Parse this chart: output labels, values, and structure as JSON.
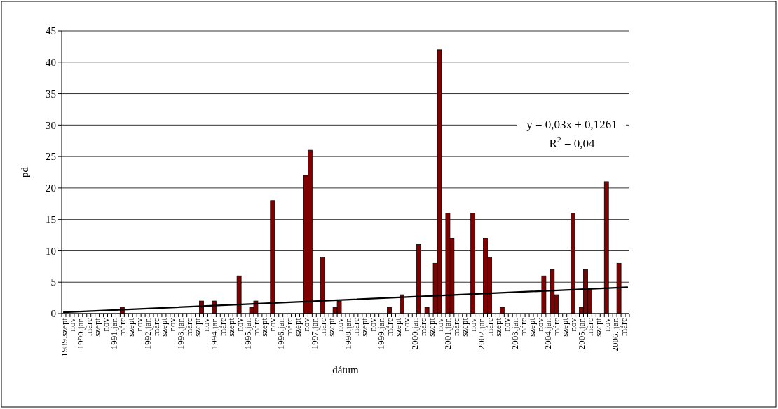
{
  "chart_data": {
    "type": "bar",
    "xlabel": "dátum",
    "ylabel": "pd",
    "categories": [
      "1989.szept",
      null,
      "nov",
      null,
      "1990.jan",
      null,
      "márc",
      null,
      "szept",
      null,
      "nov",
      null,
      "1991.jan",
      null,
      "márc",
      null,
      "szept",
      null,
      "nov",
      null,
      "1992.jan",
      null,
      "márc",
      null,
      "szept",
      null,
      "nov",
      null,
      "1993.jan",
      null,
      "márc",
      null,
      "szept",
      null,
      "nov",
      null,
      "1994.jan",
      null,
      "márc",
      null,
      "szept",
      null,
      "nov",
      null,
      "1995.jan",
      null,
      "márc",
      null,
      "szept",
      null,
      "nov",
      null,
      "1996.jan",
      null,
      "márc",
      null,
      "szept",
      null,
      "nov",
      null,
      "1997.jan",
      null,
      "márc",
      null,
      "szept",
      null,
      "nov",
      null,
      "1998.jan",
      null,
      "márc",
      null,
      "szept",
      null,
      "nov",
      null,
      "1999.jan",
      null,
      "márc",
      null,
      "szept",
      null,
      "nov",
      null,
      "2000.jan",
      null,
      "márc",
      null,
      "szept",
      null,
      "nov",
      null,
      "2001.jan",
      null,
      "márc",
      null,
      "szept",
      null,
      "nov",
      null,
      "2002.jan",
      null,
      "márc",
      null,
      "szept",
      null,
      "nov",
      null,
      "2003.jan",
      null,
      "márc",
      null,
      "szept",
      null,
      "nov",
      null,
      "2004.jan",
      null,
      "márc",
      null,
      "szept",
      null,
      "nov",
      null,
      "2005.jan",
      null,
      "márc",
      null,
      "szept",
      null,
      "nov",
      null,
      "2006. jan",
      null,
      "márc",
      null
    ],
    "series": [
      {
        "color": "#800000",
        "values": [
          0,
          0,
          0,
          0,
          0,
          0,
          0,
          0,
          0,
          0,
          0,
          0,
          0,
          0,
          1,
          0,
          0,
          0,
          0,
          0,
          0,
          0,
          0,
          0,
          0,
          0,
          0,
          0,
          0,
          0,
          0,
          0,
          0,
          2,
          0,
          0,
          2,
          0,
          0,
          0,
          0,
          0,
          6,
          0,
          0,
          1,
          2,
          0,
          0,
          0,
          18,
          0,
          0,
          0,
          0,
          0,
          0,
          0,
          22,
          26,
          0,
          0,
          9,
          0,
          0,
          1,
          2,
          0,
          0,
          0,
          0,
          0,
          0,
          0,
          0,
          0,
          0,
          0,
          1,
          0,
          0,
          3,
          0,
          0,
          0,
          11,
          0,
          1,
          0,
          8,
          42,
          0,
          16,
          12,
          0,
          0,
          0,
          0,
          16,
          0,
          0,
          12,
          9,
          0,
          0,
          1,
          0,
          0,
          0,
          0,
          0,
          0,
          0,
          0,
          0,
          6,
          0,
          7,
          3,
          0,
          0,
          0,
          16,
          0,
          1,
          7,
          4,
          0,
          0,
          0,
          21,
          0,
          0,
          8,
          0,
          0
        ]
      },
      {
        "type": "line",
        "color": "#000000",
        "values": [
          0.2,
          null,
          null,
          null,
          null,
          null,
          null,
          null,
          null,
          null,
          null,
          null,
          null,
          null,
          null,
          null,
          null,
          null,
          null,
          null,
          null,
          null,
          null,
          null,
          null,
          null,
          null,
          null,
          null,
          null,
          null,
          null,
          null,
          null,
          null,
          null,
          null,
          null,
          null,
          null,
          null,
          null,
          null,
          null,
          null,
          null,
          null,
          null,
          null,
          null,
          null,
          null,
          null,
          null,
          null,
          null,
          null,
          null,
          null,
          null,
          null,
          null,
          null,
          null,
          null,
          null,
          null,
          null,
          null,
          null,
          null,
          null,
          null,
          null,
          null,
          null,
          null,
          null,
          null,
          null,
          null,
          null,
          null,
          null,
          null,
          null,
          null,
          null,
          null,
          null,
          null,
          null,
          null,
          null,
          null,
          null,
          null,
          null,
          null,
          null,
          null,
          null,
          null,
          null,
          null,
          null,
          null,
          null,
          null,
          null,
          null,
          null,
          null,
          null,
          null,
          null,
          null,
          null,
          null,
          null,
          null,
          null,
          null,
          null,
          null,
          null,
          null,
          null,
          null,
          null,
          null,
          null,
          null,
          null,
          null,
          4.2
        ]
      }
    ],
    "ylim": [
      0,
      45
    ],
    "yticks": [
      0,
      5,
      10,
      15,
      20,
      25,
      30,
      35,
      40,
      45
    ],
    "grid": "y",
    "annotations": [
      "y = 0,03x + 0,1261",
      "R$^{2}$ = 0,04"
    ]
  }
}
